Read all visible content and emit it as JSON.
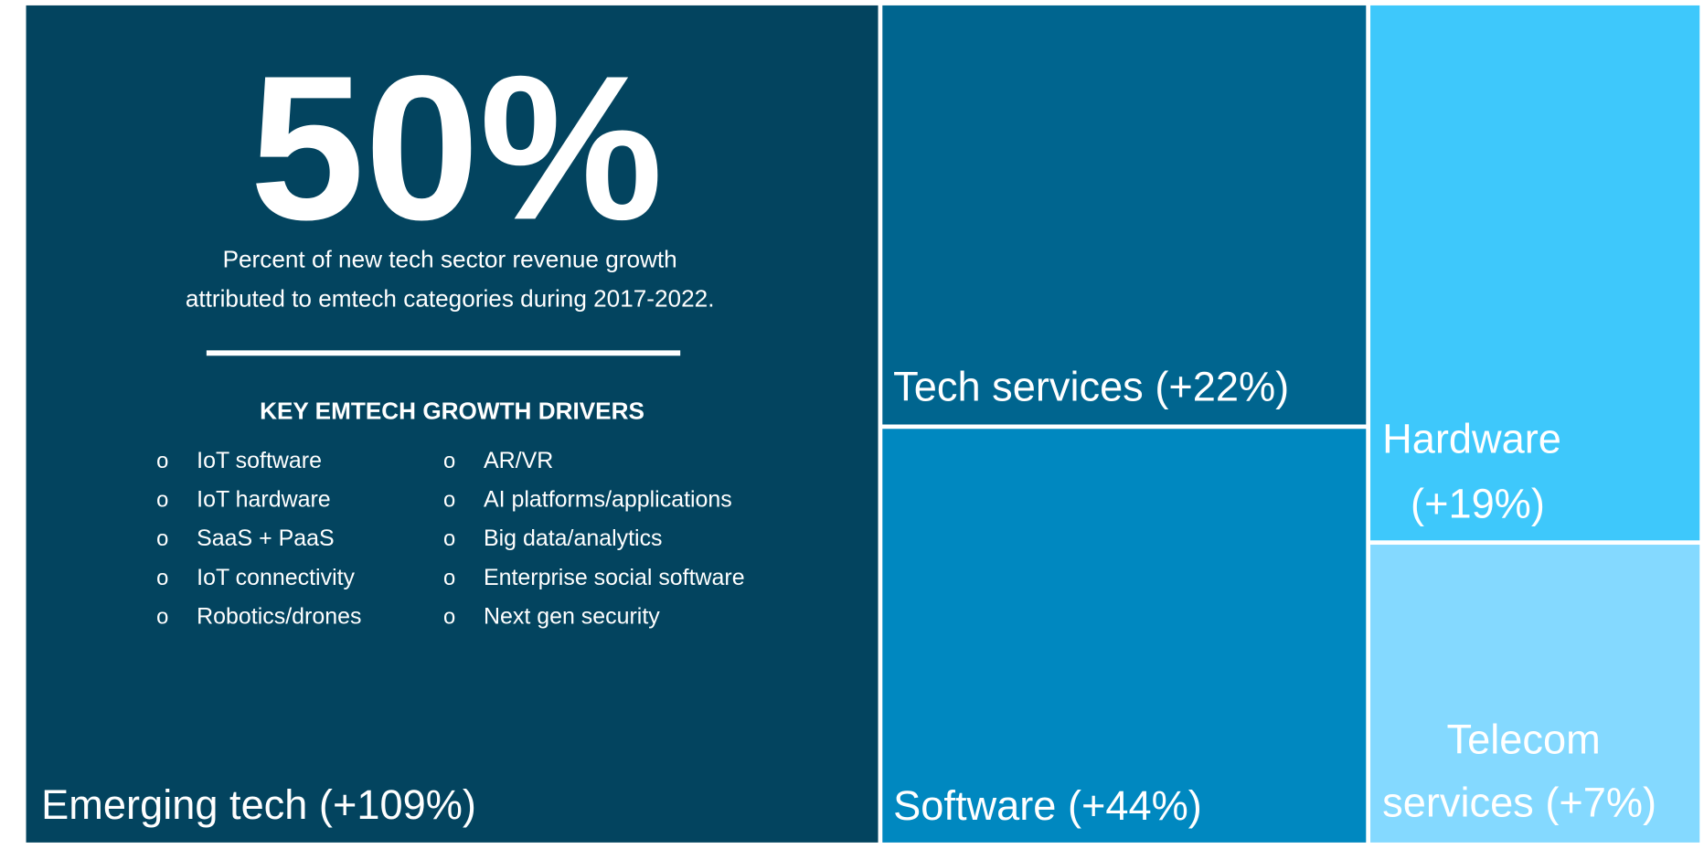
{
  "headline": "50%",
  "description": [
    "Percent of new tech sector revenue growth",
    "attributed to emtech categories during 2017-2022."
  ],
  "drivers_title": "KEY EMTECH GROWTH DRIVERS",
  "bullet": "o",
  "drivers": [
    [
      "IoT software",
      "IoT hardware",
      "SaaS + PaaS",
      "IoT connectivity",
      "Robotics/drones"
    ],
    [
      "AR/VR",
      "AI platforms/applications",
      "Big data/analytics",
      "Enterprise  social software",
      "Next gen security"
    ]
  ],
  "tiles": [
    {
      "label": [
        "Emerging tech (+109%)"
      ],
      "color": "#03445f"
    },
    {
      "label": [
        "Tech services (+22%)"
      ],
      "color": "#00658f"
    },
    {
      "label": [
        "Software (+44%)"
      ],
      "color": "#0088c0"
    },
    {
      "label": [
        "Hardware",
        "(+19%)"
      ],
      "color": "#3ec8fb"
    },
    {
      "label": [
        "Telecom",
        "services (+7%)"
      ],
      "color": "#84d9ff"
    }
  ]
}
